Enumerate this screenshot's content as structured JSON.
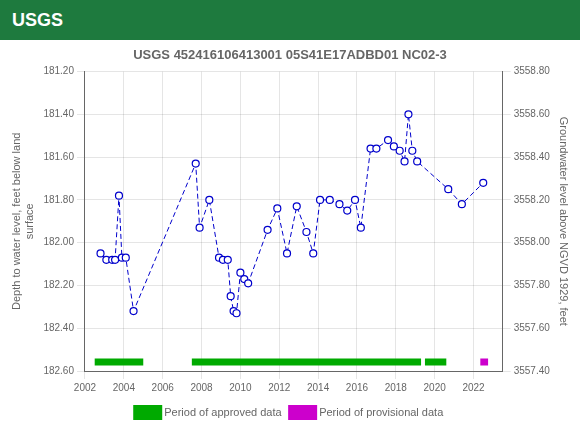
{
  "chart_data": {
    "type": "line",
    "title": "USGS 452416106413001 05S41E17ADBD01 NC02-3",
    "annotations": [
      "USGS"
    ],
    "ylabel": "Depth to water level, feet below land\nsurface",
    "y2label": "Groundwater level above NGVD 1929, feet",
    "xlim": [
      2002,
      2023.5
    ],
    "xticks": [
      2002,
      2004,
      2006,
      2008,
      2010,
      2012,
      2014,
      2016,
      2018,
      2020,
      2022
    ],
    "ylim": [
      182.6,
      181.2
    ],
    "yticks": [
      {
        "value": 181.2,
        "label": "181.20"
      },
      {
        "value": 181.4,
        "label": "181.40"
      },
      {
        "value": 181.6,
        "label": "181.60"
      },
      {
        "value": 181.8,
        "label": "181.80"
      },
      {
        "value": 182.0,
        "label": "182.00"
      },
      {
        "value": 182.2,
        "label": "182.20"
      },
      {
        "value": 182.4,
        "label": "182.40"
      },
      {
        "value": 182.6,
        "label": "182.60"
      }
    ],
    "y2lim": [
      3557.4,
      3558.8
    ],
    "y2ticks": [
      {
        "value": 3557.4,
        "label": "3557.40"
      },
      {
        "value": 3557.6,
        "label": "3557.60"
      },
      {
        "value": 3557.8,
        "label": "3557.80"
      },
      {
        "value": 3558.0,
        "label": "3558.00"
      },
      {
        "value": 3558.2,
        "label": "3558.20"
      },
      {
        "value": 3558.4,
        "label": "3558.40"
      },
      {
        "value": 3558.6,
        "label": "3558.60"
      },
      {
        "value": 3558.8,
        "label": "3558.80"
      }
    ],
    "grid": true,
    "legend": "bottom",
    "series": [
      {
        "type": "line",
        "color": "#0000cc",
        "marker": "circle",
        "line_style": "dashed",
        "x": [
          2002.8,
          2003.1,
          2003.4,
          2003.55,
          2003.75,
          2003.9,
          2004.1,
          2004.5,
          2007.7,
          2007.9,
          2008.4,
          2008.9,
          2009.1,
          2009.35,
          2009.5,
          2009.65,
          2009.8,
          2010.0,
          2010.2,
          2010.4,
          2011.4,
          2011.9,
          2012.4,
          2012.9,
          2013.4,
          2013.75,
          2014.1,
          2014.6,
          2015.1,
          2015.5,
          2015.9,
          2016.2,
          2016.7,
          2017.0,
          2017.6,
          2017.9,
          2018.2,
          2018.45,
          2018.65,
          2018.85,
          2019.1,
          2020.7,
          2021.4,
          2022.5
        ],
        "values": [
          182.05,
          182.08,
          182.08,
          182.08,
          181.78,
          182.07,
          182.07,
          182.32,
          181.63,
          181.93,
          181.8,
          182.07,
          182.08,
          182.08,
          182.25,
          182.32,
          182.33,
          182.14,
          182.17,
          182.19,
          181.94,
          181.84,
          182.05,
          181.83,
          181.95,
          182.05,
          181.8,
          181.8,
          181.82,
          181.85,
          181.8,
          181.93,
          181.56,
          181.56,
          181.52,
          181.55,
          181.57,
          181.62,
          181.4,
          181.57,
          181.62,
          181.75,
          181.82,
          181.72
        ]
      },
      {
        "name": "Period of approved data",
        "type": "bar",
        "color": "#00aa00",
        "values": [
          [
            2002.5,
            2005.0
          ],
          [
            2007.5,
            2019.3
          ],
          [
            2019.5,
            2020.6
          ]
        ]
      },
      {
        "name": "Period of provisional data",
        "type": "bar",
        "color": "#cc00cc",
        "values": [
          [
            2022.35,
            2022.75
          ]
        ]
      }
    ]
  }
}
